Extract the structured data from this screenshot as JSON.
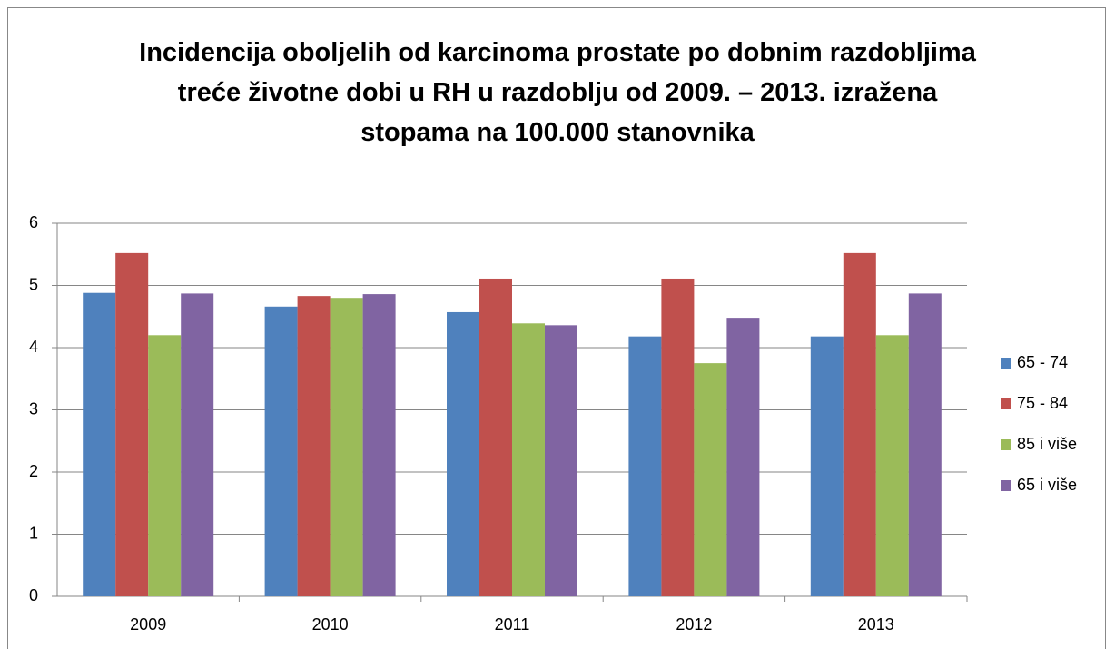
{
  "chart_data": {
    "type": "bar",
    "title": "Incidencija oboljelih od karcinoma prostate po dobnim razdobljima treće životne dobi u RH u razdoblju od 2009. – 2013. izražena stopama na 100.000 stanovnika",
    "categories": [
      "2009",
      "2010",
      "2011",
      "2012",
      "2013"
    ],
    "series": [
      {
        "name": "65 - 74",
        "color": "#4f81bd",
        "values": [
          4.88,
          4.66,
          4.57,
          4.18,
          4.18
        ]
      },
      {
        "name": "75 - 84",
        "color": "#c0504d",
        "values": [
          5.52,
          4.83,
          5.11,
          5.11,
          5.52
        ]
      },
      {
        "name": "85 i više",
        "color": "#9bbb59",
        "values": [
          4.2,
          4.8,
          4.39,
          3.75,
          4.2
        ]
      },
      {
        "name": "65 i više",
        "color": "#8064a2",
        "values": [
          4.87,
          4.86,
          4.36,
          4.48,
          4.87
        ]
      }
    ],
    "ylim": [
      0,
      6
    ],
    "yticks": [
      0,
      1,
      2,
      3,
      4,
      5,
      6
    ],
    "grid": true,
    "legend": "right"
  }
}
